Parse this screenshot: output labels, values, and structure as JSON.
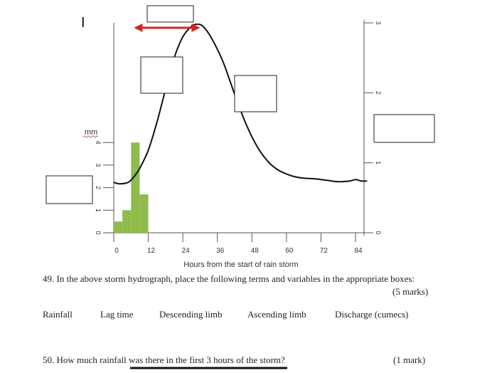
{
  "corner_mark": "I",
  "chart_data": {
    "type": "hydrograph",
    "xlabel": "Hours from the start of rain storm",
    "x_ticks": [
      0,
      12,
      24,
      36,
      48,
      60,
      72,
      84
    ],
    "xlim": [
      0,
      84
    ],
    "left_axis": {
      "unit_label": "mm",
      "ticks": [
        0,
        1,
        2,
        3,
        4
      ],
      "ylim": [
        0,
        4
      ]
    },
    "right_axis": {
      "ticks": [
        0,
        1,
        2,
        3
      ],
      "ylim": [
        0,
        3
      ]
    },
    "rainfall_bars": [
      {
        "start": 0,
        "end": 3,
        "value": 0.5
      },
      {
        "start": 3,
        "end": 6,
        "value": 1.0
      },
      {
        "start": 6,
        "end": 9,
        "value": 4.0
      },
      {
        "start": 9,
        "end": 12,
        "value": 1.7
      }
    ],
    "discharge_curve": {
      "x": [
        0,
        2,
        5,
        7,
        9,
        12,
        15,
        18,
        21,
        24,
        27,
        29,
        31,
        34,
        38,
        42,
        46,
        50,
        54,
        57,
        60,
        63,
        66,
        70,
        74,
        78,
        82,
        84,
        86,
        88
      ],
      "y": [
        0.72,
        0.7,
        0.72,
        0.8,
        0.92,
        1.18,
        1.58,
        2.05,
        2.5,
        2.8,
        2.95,
        2.98,
        2.95,
        2.78,
        2.44,
        1.98,
        1.55,
        1.22,
        1.0,
        0.9,
        0.84,
        0.8,
        0.78,
        0.77,
        0.75,
        0.73,
        0.74,
        0.76,
        0.74,
        0.74
      ]
    },
    "lag_time_arrow": {
      "from": 7,
      "to": 30
    },
    "colors": {
      "rainfall": "#8fbc4d",
      "discharge": "#111111",
      "arrow": "#d42626",
      "axes": "#555555"
    }
  },
  "questions": [
    {
      "text": "49. In the above storm hydrograph, place the following terms and variables in the appropriate boxes:",
      "marks": "(5 marks)",
      "terms": [
        "Rainfall",
        "Lag time",
        "Descending limb",
        "Ascending limb",
        "Discharge (cumecs)"
      ]
    },
    {
      "text": "50. How much rainfall was there in the first 3 hours of the storm?",
      "marks": "(1 mark)"
    }
  ]
}
